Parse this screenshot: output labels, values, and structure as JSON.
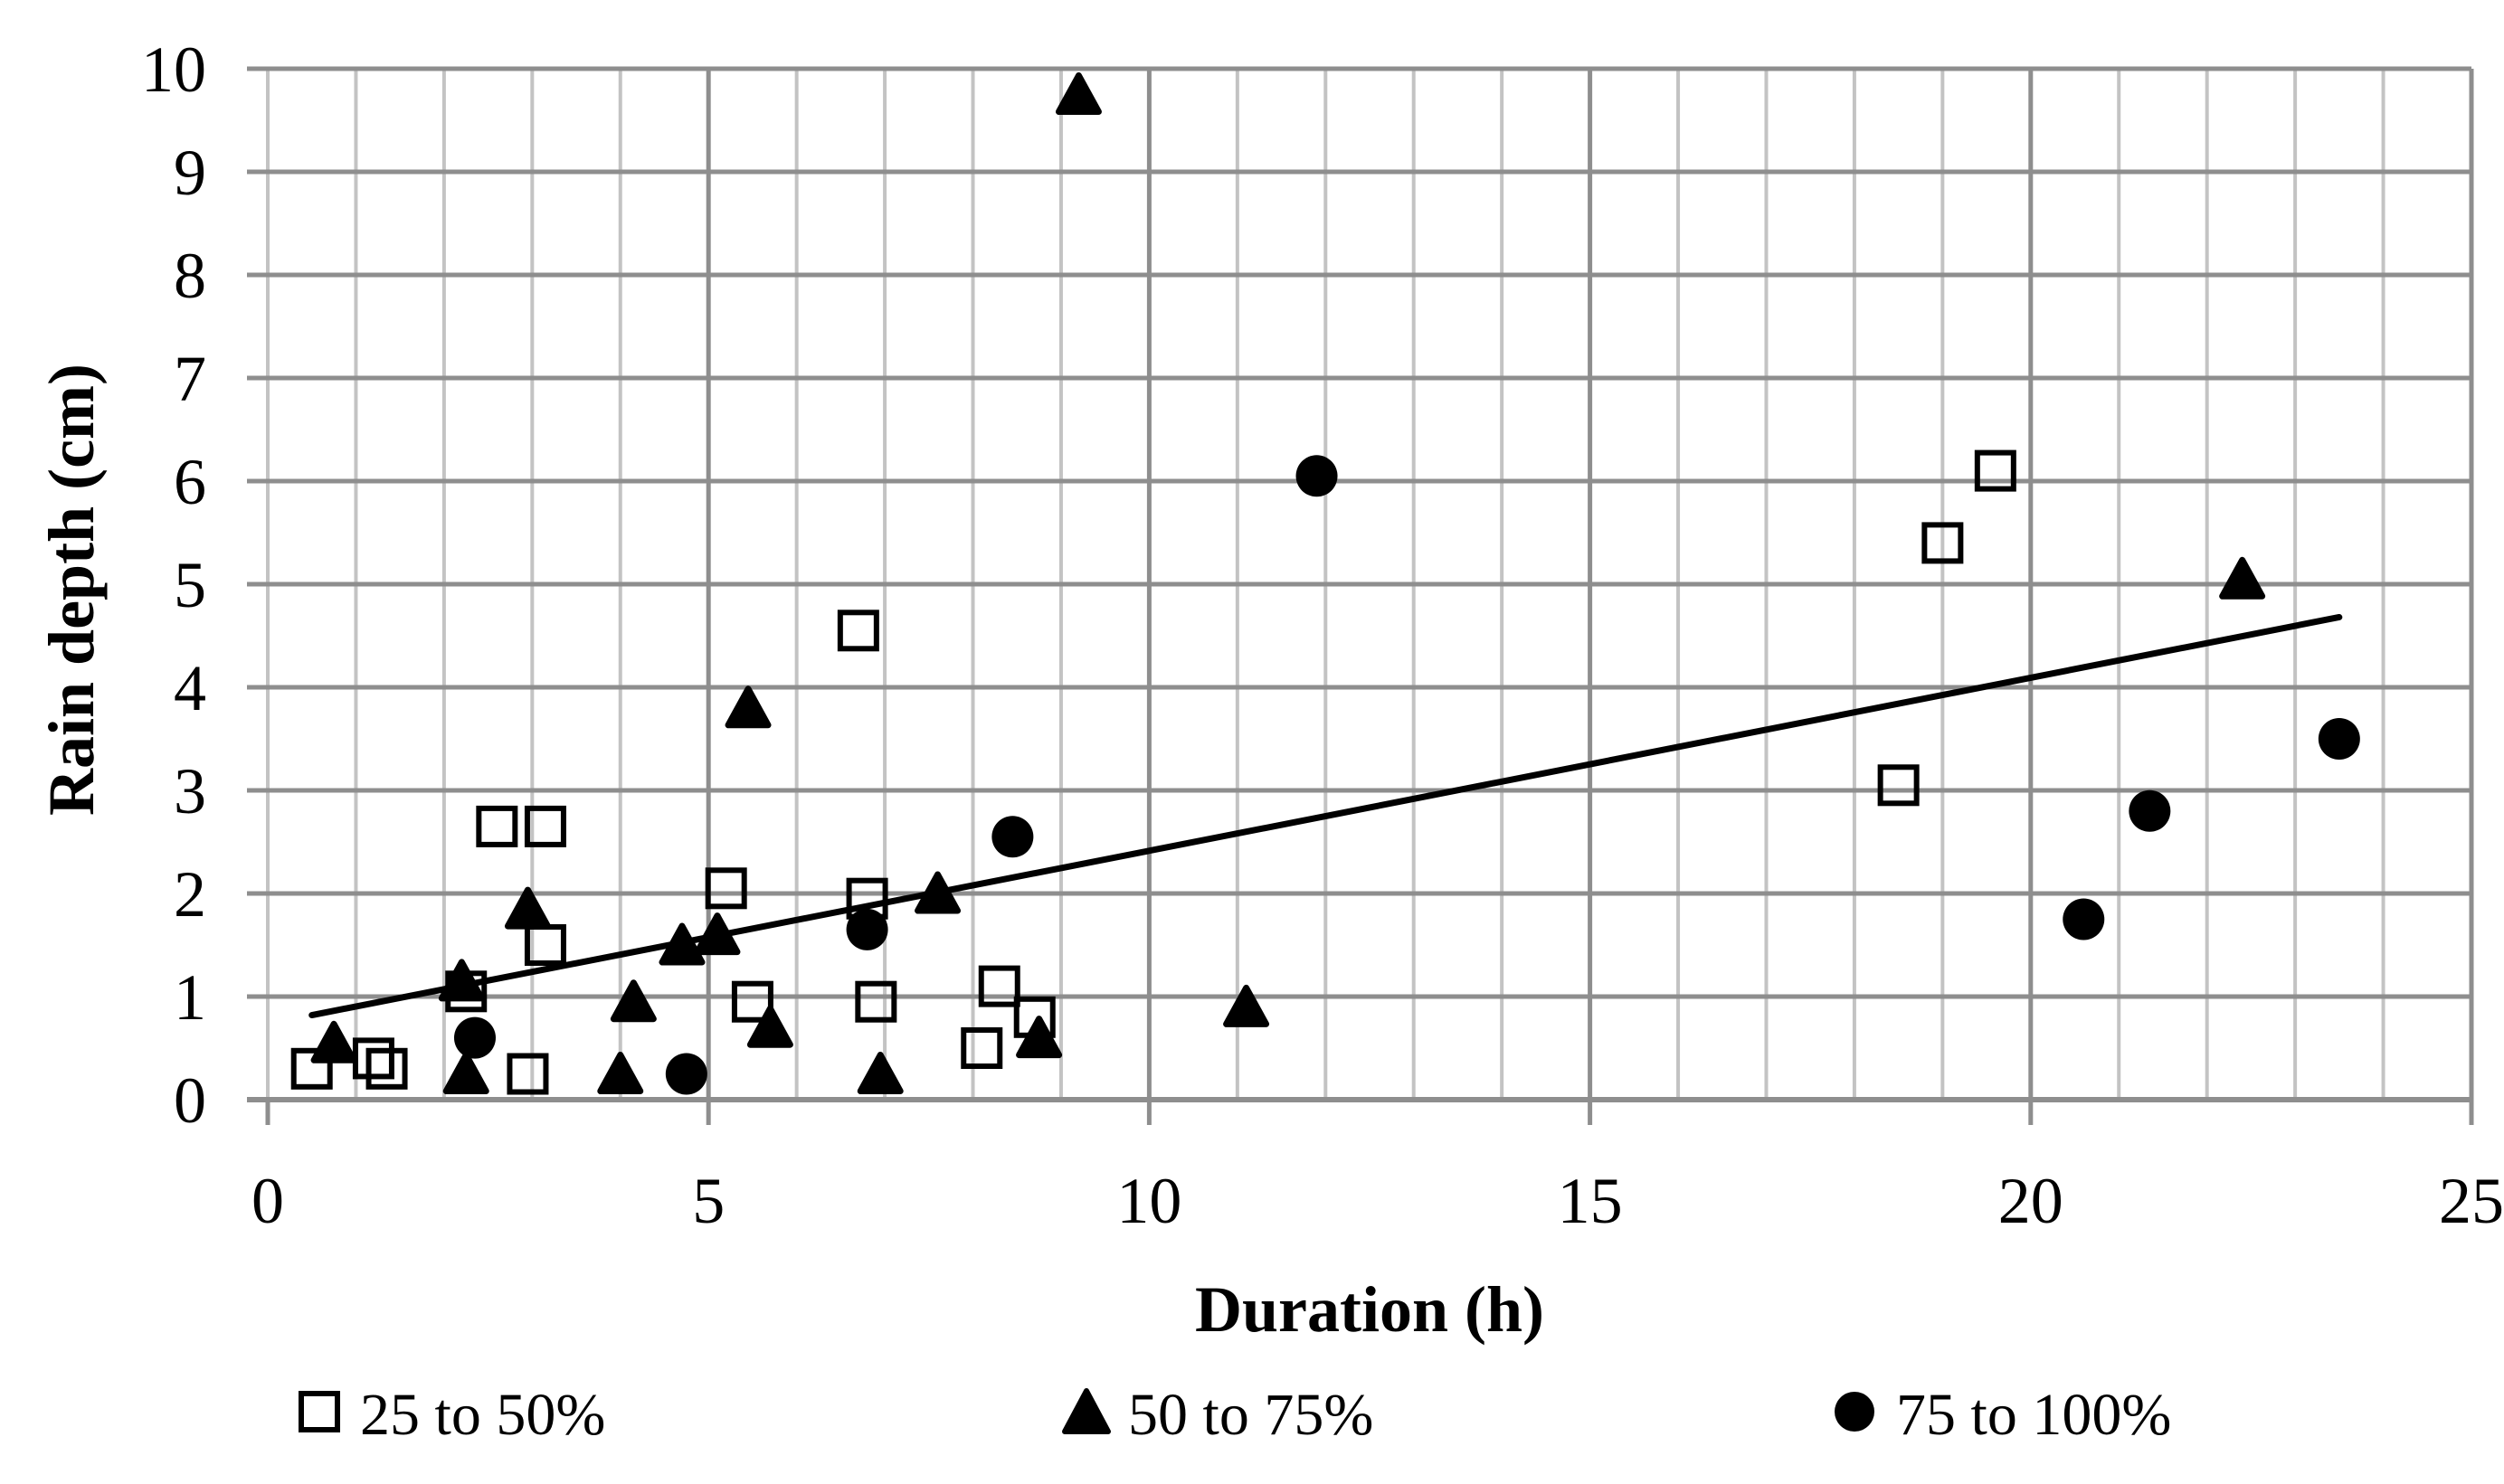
{
  "chart_data": {
    "type": "scatter",
    "title": "",
    "xlabel": "Duration (h)",
    "ylabel": "Rain depth (cm)",
    "xlim": [
      0,
      25
    ],
    "ylim": [
      0,
      10
    ],
    "x_ticks": [
      0,
      5,
      10,
      15,
      20,
      25
    ],
    "y_ticks": [
      0,
      1,
      2,
      3,
      4,
      5,
      6,
      7,
      8,
      9,
      10
    ],
    "grid": {
      "vertical_minor_step": 1,
      "vertical_major_step": 5,
      "horizontal_step": 1,
      "grid_on": true
    },
    "legend_position": "bottom",
    "series": [
      {
        "name": "25 to 50%",
        "marker": "open-square",
        "points": [
          [
            0.5,
            0.3
          ],
          [
            1.2,
            0.4
          ],
          [
            1.35,
            0.3
          ],
          [
            2.25,
            1.05
          ],
          [
            2.6,
            2.65
          ],
          [
            3.15,
            2.65
          ],
          [
            3.15,
            1.5
          ],
          [
            2.95,
            0.25
          ],
          [
            5.2,
            2.05
          ],
          [
            5.5,
            0.95
          ],
          [
            6.7,
            4.55
          ],
          [
            6.8,
            1.95
          ],
          [
            6.9,
            0.95
          ],
          [
            8.1,
            0.5
          ],
          [
            8.3,
            1.1
          ],
          [
            8.7,
            0.8
          ],
          [
            18.5,
            3.05
          ],
          [
            19,
            5.4
          ],
          [
            19.6,
            6.1
          ]
        ]
      },
      {
        "name": "50 to 75%",
        "marker": "filled-triangle",
        "points": [
          [
            0.75,
            0.55
          ],
          [
            2.2,
            1.15
          ],
          [
            2.25,
            0.25
          ],
          [
            2.95,
            1.85
          ],
          [
            4,
            0.25
          ],
          [
            4.15,
            0.95
          ],
          [
            4.7,
            1.5
          ],
          [
            5.1,
            1.6
          ],
          [
            5.45,
            3.8
          ],
          [
            5.7,
            0.7
          ],
          [
            6.95,
            0.25
          ],
          [
            7.6,
            2
          ],
          [
            8.75,
            0.6
          ],
          [
            9.2,
            9.75
          ],
          [
            11.1,
            0.9
          ],
          [
            22.4,
            5.05
          ]
        ]
      },
      {
        "name": "75 to 100%",
        "marker": "filled-circle",
        "points": [
          [
            2.35,
            0.6
          ],
          [
            4.75,
            0.25
          ],
          [
            6.8,
            1.65
          ],
          [
            8.45,
            2.55
          ],
          [
            11.9,
            6.05
          ],
          [
            20.6,
            1.75
          ],
          [
            21.35,
            2.8
          ],
          [
            23.5,
            3.5
          ]
        ]
      }
    ],
    "trendline": {
      "x1": 0.5,
      "y1": 0.82,
      "x2": 23.5,
      "y2": 4.68
    }
  },
  "colors": {
    "background": "#ffffff",
    "marker": "#000000",
    "trendline": "#000000",
    "grid_major": "#8e8e8e",
    "grid_minor": "#c3c3c3",
    "text": "#000000"
  }
}
